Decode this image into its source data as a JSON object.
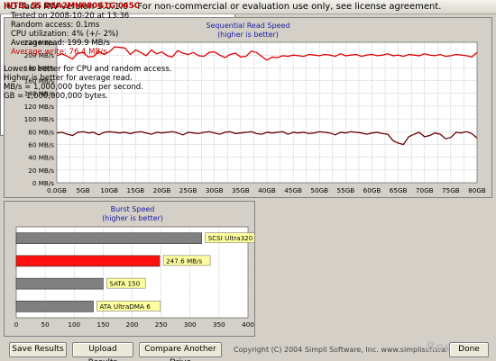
{
  "window": {
    "title": "HD Tach RW version 3.0.1.0  - For non-commercial or evaluation use only, see license agreement."
  },
  "colors": {
    "read_line": "#e00000",
    "write_line": "#6a0000",
    "burst_highlight": "#ff1010",
    "burst_bar": "#808080",
    "label_bg": "#ffffa0"
  },
  "chart_data": [
    {
      "type": "line",
      "title": "Sequential Read Speed",
      "subtitle": "(higher is better)",
      "ylim": [
        0,
        220
      ],
      "yticks": [
        "0 MB/s",
        "20 MB/s",
        "40 MB/s",
        "60 MB/s",
        "80 MB/s",
        "100 MB/s",
        "120 MB/s",
        "140 MB/s",
        "160 MB/s",
        "180 MB/s",
        "200 MB/s",
        "220 MB/s"
      ],
      "xlim": [
        0,
        80
      ],
      "xticks": [
        "0.0GB",
        "5GB",
        "10GB",
        "15GB",
        "20GB",
        "25GB",
        "30GB",
        "35GB",
        "40GB",
        "45GB",
        "50GB",
        "55GB",
        "60GB",
        "65GB",
        "70GB",
        "75GB",
        "80GB"
      ],
      "grid": true,
      "series": [
        {
          "color": "#e00000",
          "x": [
            0,
            1,
            2,
            3,
            4,
            5,
            6,
            7,
            8,
            9,
            10,
            11,
            12,
            13,
            14,
            15,
            16,
            17,
            18,
            19,
            20,
            21,
            22,
            23,
            24,
            25,
            26,
            27,
            28,
            29,
            30,
            31,
            32,
            33,
            34,
            35,
            36,
            37,
            38,
            39,
            40,
            41,
            42,
            43,
            44,
            45,
            46,
            47,
            48,
            49,
            50,
            51,
            52,
            53,
            54,
            55,
            56,
            57,
            58,
            59,
            60,
            61,
            62,
            63,
            64,
            65,
            66,
            67,
            68,
            69,
            70,
            71,
            72,
            73,
            74,
            75,
            76,
            77,
            78,
            79,
            80
          ],
          "y": [
            199,
            202,
            198,
            194,
            203,
            204,
            197,
            198,
            206,
            201,
            205,
            213,
            212,
            211,
            201,
            208,
            204,
            199,
            208,
            202,
            205,
            199,
            197,
            207,
            203,
            201,
            204,
            199,
            198,
            204,
            205,
            200,
            196,
            201,
            203,
            197,
            198,
            206,
            204,
            198,
            192,
            197,
            196,
            199,
            198,
            200,
            199,
            198,
            201,
            200,
            199,
            201,
            200,
            198,
            202,
            199,
            200,
            201,
            198,
            200,
            201,
            199,
            200,
            202,
            199,
            200,
            198,
            201,
            200,
            199,
            202,
            200,
            199,
            201,
            198,
            199,
            201,
            200,
            199,
            197,
            204
          ]
        },
        {
          "color": "#6a0000",
          "x": [
            0,
            1,
            2,
            3,
            4,
            5,
            6,
            7,
            8,
            9,
            10,
            11,
            12,
            13,
            14,
            15,
            16,
            17,
            18,
            19,
            20,
            21,
            22,
            23,
            24,
            25,
            26,
            27,
            28,
            29,
            30,
            31,
            32,
            33,
            34,
            35,
            36,
            37,
            38,
            39,
            40,
            41,
            42,
            43,
            44,
            45,
            46,
            47,
            48,
            49,
            50,
            51,
            52,
            53,
            54,
            55,
            56,
            57,
            58,
            59,
            60,
            61,
            62,
            63,
            64,
            65,
            66,
            67,
            68,
            69,
            70,
            71,
            72,
            73,
            74,
            75,
            76,
            77,
            78,
            79,
            80
          ],
          "y": [
            78,
            79,
            76,
            74,
            79,
            80,
            78,
            79,
            75,
            79,
            80,
            79,
            78,
            79,
            77,
            79,
            80,
            78,
            76,
            79,
            78,
            79,
            80,
            78,
            75,
            79,
            78,
            77,
            79,
            80,
            78,
            76,
            79,
            80,
            77,
            78,
            79,
            80,
            77,
            76,
            79,
            78,
            79,
            80,
            76,
            79,
            78,
            79,
            77,
            78,
            80,
            79,
            78,
            75,
            79,
            78,
            80,
            79,
            78,
            76,
            78,
            79,
            77,
            76,
            66,
            62,
            60,
            72,
            76,
            79,
            72,
            74,
            78,
            76,
            69,
            71,
            79,
            78,
            80,
            77,
            70
          ]
        }
      ]
    },
    {
      "type": "bar",
      "title": "Burst Speed",
      "subtitle": "(higher is better)",
      "xlim": [
        0,
        400
      ],
      "xticks": [
        "0",
        "50",
        "100",
        "150",
        "200",
        "250",
        "300",
        "350",
        "400"
      ],
      "categories": [
        "SCSI Ultra320",
        "247.6 MB/s",
        "SATA 150",
        "ATA UltraDMA 6"
      ],
      "values": [
        320,
        247.6,
        150,
        133
      ],
      "highlight_index": 1
    }
  ],
  "info": {
    "drive": "INTEL SS DSA2MH080G1G 045C",
    "tested_on": "Tested on 2008-10-20 at 13:36",
    "random_access": "Random access: 0.1ms",
    "cpu": "CPU utilization: 4% (+/- 2%)",
    "avg_read": "Average read: 199.9 MB/s",
    "avg_write": "Average write: 76.4 MB/s",
    "note1": "Lower is better for CPU and random access.",
    "note2": "Higher is better for average read.",
    "note3": "MB/s = 1,000,000 bytes per second.",
    "note4": "GB = 1,000,000,000 bytes."
  },
  "buttons": {
    "save": "Save Results",
    "upload": "Upload Results",
    "compare": "Compare Another Drive",
    "done": "Done"
  },
  "footer": {
    "copyright": "Copyright (C) 2004 Simpli Software, Inc. www.simplisoftware.com",
    "watermark": "Boolare"
  }
}
